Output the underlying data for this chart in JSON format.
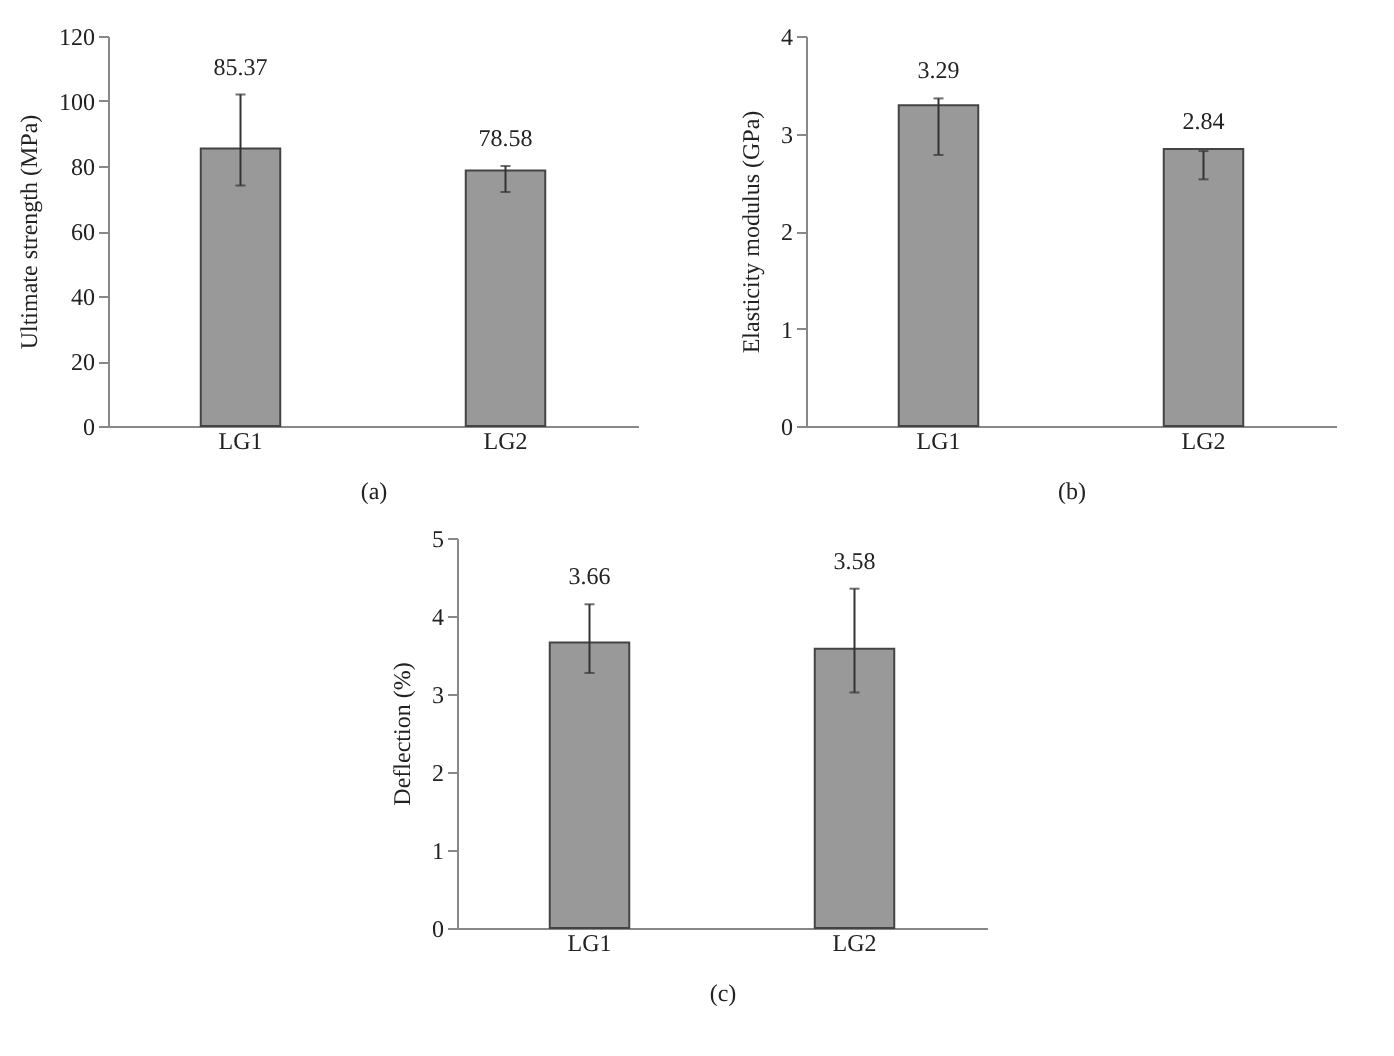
{
  "chart_data": [
    {
      "type": "bar",
      "xlabel": "(a)",
      "ylabel": "Ultimate strength (MPa)",
      "categories": [
        "LG1",
        "LG2"
      ],
      "values": [
        85.37,
        78.58
      ],
      "errors": [
        [
          74,
          102
        ],
        [
          72,
          80
        ]
      ],
      "color": "#999999",
      "ylim": [
        0,
        120
      ],
      "yticks": [
        0,
        20,
        40,
        60,
        80,
        100,
        120
      ],
      "data_labels": true,
      "grid": false
    },
    {
      "type": "bar",
      "xlabel": "(b)",
      "ylabel": "Elasticity modulus (GPa)",
      "categories": [
        "LG1",
        "LG2"
      ],
      "values": [
        3.29,
        2.84
      ],
      "errors": [
        [
          2.78,
          3.36
        ],
        [
          2.53,
          2.82
        ]
      ],
      "color": "#999999",
      "ylim": [
        0,
        4
      ],
      "yticks": [
        0,
        1,
        2,
        3,
        4
      ],
      "data_labels": true,
      "grid": false
    },
    {
      "type": "bar",
      "xlabel": "(c)",
      "ylabel": "Deflection (%)",
      "categories": [
        "LG1",
        "LG2"
      ],
      "values": [
        3.66,
        3.58
      ],
      "errors": [
        [
          3.27,
          4.15
        ],
        [
          3.02,
          4.35
        ]
      ],
      "color": "#999999",
      "ylim": [
        0,
        5
      ],
      "yticks": [
        0,
        1,
        2,
        3,
        4,
        5
      ],
      "data_labels": true,
      "grid": false
    }
  ]
}
